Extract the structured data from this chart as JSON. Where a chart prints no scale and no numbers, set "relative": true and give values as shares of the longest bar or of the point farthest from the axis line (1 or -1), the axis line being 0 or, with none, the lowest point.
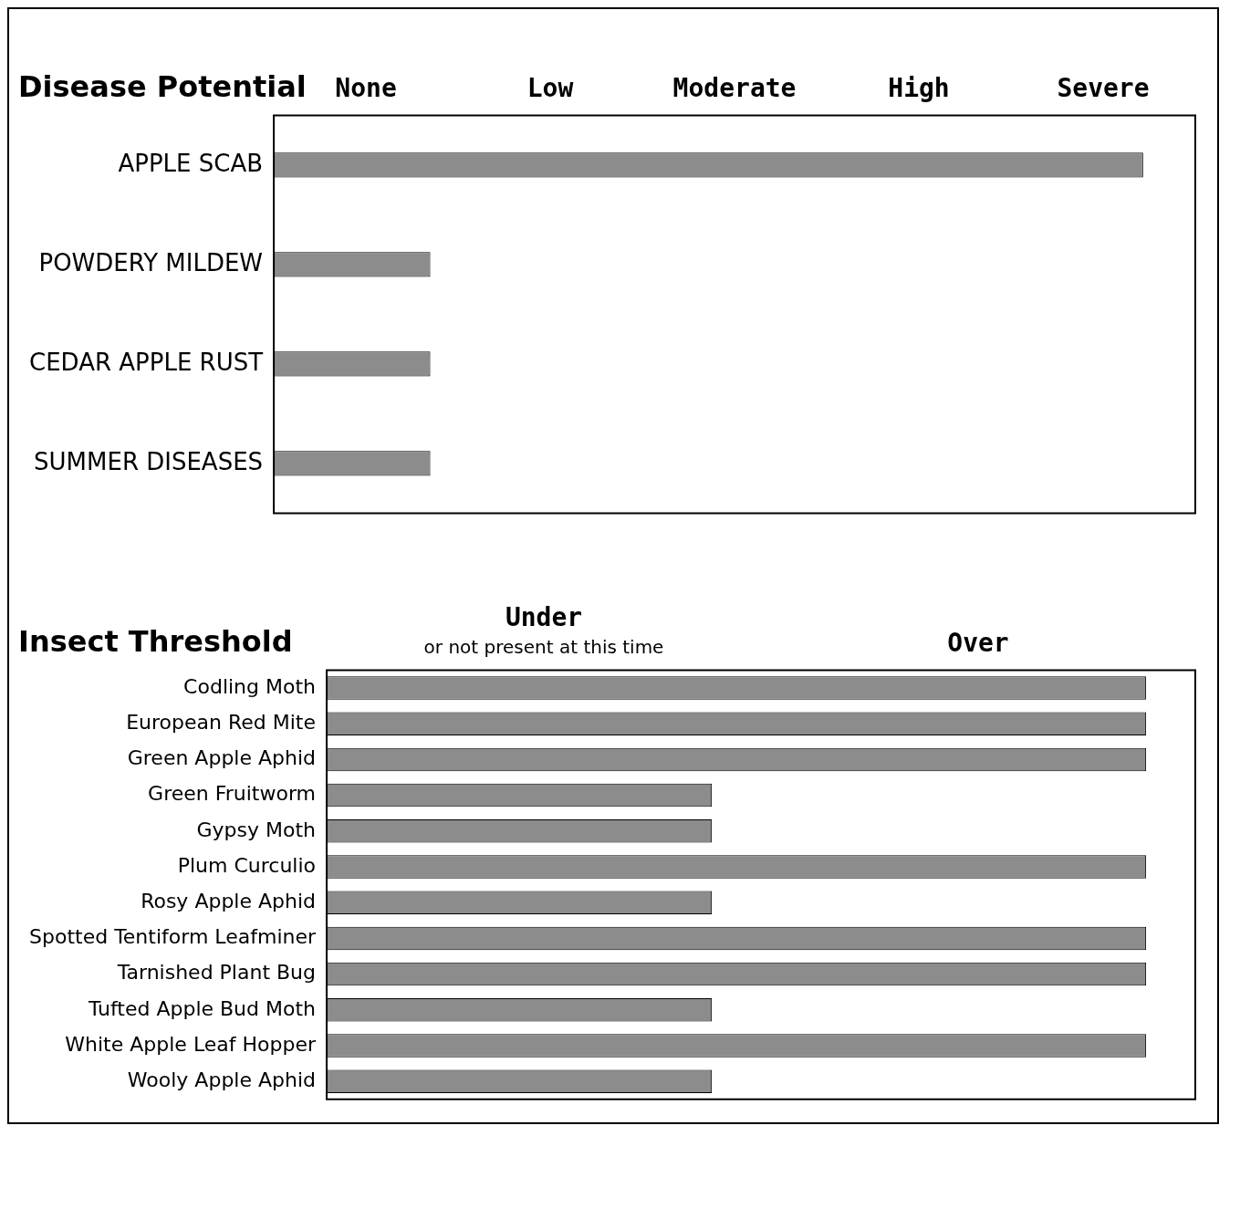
{
  "chart_data": [
    {
      "type": "bar",
      "orientation": "horizontal",
      "relative": true,
      "title": "Disease Potential",
      "categories": [
        "APPLE SCAB",
        "POWDERY MILDEW",
        "CEDAR APPLE RUST",
        "SUMMER DISEASES"
      ],
      "values": [
        1,
        0.18,
        0.18,
        0.18
      ],
      "color": "#8c8c8c",
      "annotations": [
        "None",
        "Low",
        "Moderate",
        "High",
        "Severe"
      ]
    },
    {
      "type": "bar",
      "orientation": "horizontal",
      "relative": true,
      "title": "Insect Threshold",
      "categories": [
        "Codling Moth",
        "European Red Mite",
        "Green Apple Aphid",
        "Green Fruitworm",
        "Gypsy Moth",
        "Plum Curculio",
        "Rosy Apple Aphid",
        "Spotted Tentiform Leafminer",
        "Tarnished Plant Bug",
        "Tufted Apple Bud Moth",
        "White Apple Leaf Hopper",
        "Wooly Apple Aphid"
      ],
      "values": [
        1,
        1,
        1,
        0.47,
        0.47,
        1,
        0.47,
        1,
        1,
        0.47,
        1,
        0.47
      ],
      "color": "#8c8c8c",
      "annotations": [
        "Under\nor not present at this time",
        "Over"
      ]
    }
  ]
}
